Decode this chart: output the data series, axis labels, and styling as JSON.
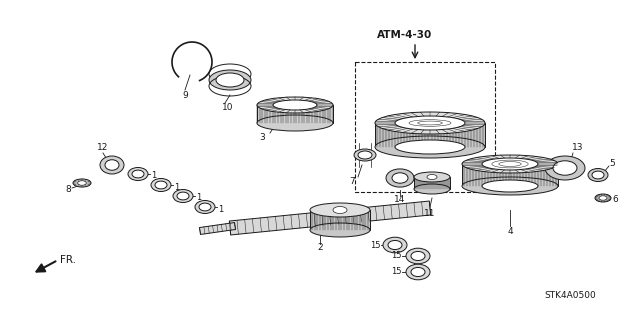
{
  "bg_color": "#ffffff",
  "fig_width": 6.4,
  "fig_height": 3.19,
  "dpi": 100,
  "atm_label": "ATM-4-30",
  "stk_label": "STK4A0500",
  "fr_label": "FR.",
  "line_color": "#1a1a1a",
  "lw": 0.7
}
